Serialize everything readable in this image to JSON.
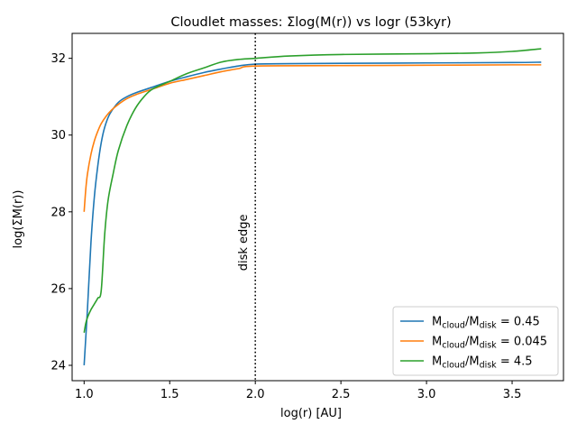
{
  "chart_data": {
    "type": "line",
    "title": "Cloudlet masses: Σlog(M(r)) vs logr (53kyr)",
    "xlabel": "log(r) [AU]",
    "ylabel": "log(ΣM(r))",
    "xlim": [
      0.93,
      3.8
    ],
    "ylim": [
      23.6,
      32.65
    ],
    "xticks": [
      1.0,
      1.5,
      2.0,
      2.5,
      3.0,
      3.5
    ],
    "xtick_labels": [
      "1.0",
      "1.5",
      "2.0",
      "2.5",
      "3.0",
      "3.5"
    ],
    "yticks": [
      24,
      26,
      28,
      30,
      32
    ],
    "ytick_labels": [
      "24",
      "26",
      "28",
      "30",
      "32"
    ],
    "grid": false,
    "legend_position": "lower-right",
    "annotations": [
      {
        "text": "disk edge",
        "type": "vline",
        "x": 2.0,
        "style": "dotted",
        "color": "#000000"
      }
    ],
    "series": [
      {
        "name": "Mcloud/Mdisk = 0.45",
        "legend_base": "M",
        "legend_sub1": "cloud",
        "legend_sub2": "disk",
        "legend_value": "= 0.45",
        "color": "#1f77b4",
        "x": [
          1.0,
          1.02,
          1.04,
          1.06,
          1.08,
          1.1,
          1.12,
          1.15,
          1.2,
          1.25,
          1.3,
          1.4,
          1.5,
          1.6,
          1.7,
          1.8,
          1.9,
          2.0,
          2.2,
          2.5,
          3.0,
          3.5,
          3.67
        ],
        "y": [
          24.0,
          25.5,
          27.2,
          28.4,
          29.2,
          29.8,
          30.2,
          30.55,
          30.85,
          31.0,
          31.1,
          31.25,
          31.4,
          31.52,
          31.63,
          31.72,
          31.8,
          31.85,
          31.86,
          31.87,
          31.88,
          31.89,
          31.9
        ]
      },
      {
        "name": "Mcloud/Mdisk = 0.045",
        "legend_base": "M",
        "legend_sub1": "cloud",
        "legend_sub2": "disk",
        "legend_value": "= 0.045",
        "color": "#ff7f0e",
        "x": [
          1.0,
          1.01,
          1.02,
          1.04,
          1.06,
          1.08,
          1.1,
          1.13,
          1.16,
          1.2,
          1.25,
          1.3,
          1.4,
          1.5,
          1.6,
          1.7,
          1.8,
          1.9,
          2.0,
          2.5,
          3.0,
          3.5,
          3.67
        ],
        "y": [
          28.0,
          28.6,
          29.0,
          29.5,
          29.85,
          30.1,
          30.3,
          30.5,
          30.65,
          30.8,
          30.95,
          31.05,
          31.2,
          31.35,
          31.45,
          31.55,
          31.65,
          31.73,
          31.8,
          31.81,
          31.82,
          31.83,
          31.83
        ]
      },
      {
        "name": "Mcloud/Mdisk = 4.5",
        "legend_base": "M",
        "legend_sub1": "cloud",
        "legend_sub2": "disk",
        "legend_value": "= 4.5",
        "color": "#2ca02c",
        "x": [
          1.0,
          1.01,
          1.02,
          1.04,
          1.06,
          1.08,
          1.1,
          1.12,
          1.14,
          1.17,
          1.2,
          1.25,
          1.3,
          1.35,
          1.4,
          1.5,
          1.6,
          1.7,
          1.8,
          1.9,
          2.0,
          2.2,
          2.5,
          3.0,
          3.3,
          3.5,
          3.67
        ],
        "y": [
          24.85,
          25.1,
          25.25,
          25.45,
          25.6,
          25.75,
          25.95,
          27.4,
          28.3,
          29.0,
          29.6,
          30.25,
          30.7,
          31.0,
          31.2,
          31.4,
          31.6,
          31.75,
          31.9,
          31.97,
          32.0,
          32.06,
          32.1,
          32.12,
          32.14,
          32.18,
          32.25
        ]
      }
    ]
  }
}
